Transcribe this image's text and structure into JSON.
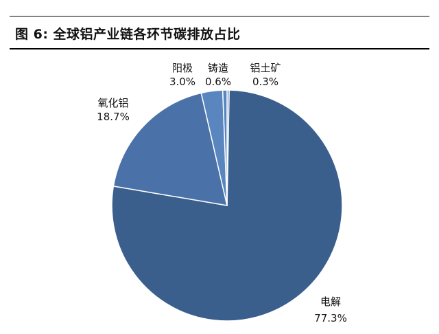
{
  "title": "图 6:  全球铝产业链各环节碳排放占比",
  "colors": {
    "slice_main": "#3a5f8c",
    "slice_secondary": "#4a72a8",
    "slice_small": "#5a86bf",
    "edge": "#ffffff"
  },
  "chart_data": {
    "type": "pie",
    "title": "图 6:  全球铝产业链各环节碳排放占比",
    "slices": [
      {
        "name": "铝土矿",
        "value": 0.3,
        "label": "0.3%"
      },
      {
        "name": "电解",
        "value": 77.3,
        "label": "77.3%"
      },
      {
        "name": "氧化铝",
        "value": 18.7,
        "label": "18.7%"
      },
      {
        "name": "阳极",
        "value": 3.0,
        "label": "3.0%"
      },
      {
        "name": "铸造",
        "value": 0.6,
        "label": "0.6%"
      }
    ],
    "start_angle_deg": 0,
    "direction": "clockwise",
    "legend": "none"
  }
}
